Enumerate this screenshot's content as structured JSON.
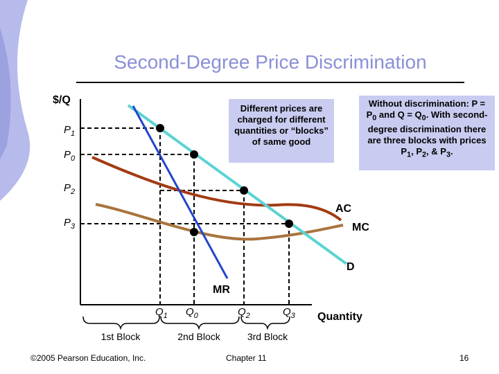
{
  "slide": {
    "title": "Second-Degree Price Discrimination",
    "footer_left": "©2005 Pearson Education, Inc.",
    "footer_center": "Chapter 11",
    "page_number": "16"
  },
  "callouts": {
    "left": "Different prices are charged for different quantities or “blocks” of same good",
    "right_html": "Without discrimination: P = P<sub>0</sub> and Q = Q<sub>0</sub>. With second-degree discrimination there are three blocks with prices P<sub>1</sub>, P<sub>2</sub>, & P<sub>3</sub>."
  },
  "chart_data": {
    "type": "diagram",
    "axes": {
      "y_label": "$/Q",
      "x_label": "Quantity"
    },
    "price_labels": [
      {
        "name": "P",
        "sub": "1"
      },
      {
        "name": "P",
        "sub": "0"
      },
      {
        "name": "P",
        "sub": "2"
      },
      {
        "name": "P",
        "sub": "3"
      }
    ],
    "quantity_labels": [
      {
        "name": "Q",
        "sub": "1"
      },
      {
        "name": "Q",
        "sub": "0"
      },
      {
        "name": "Q",
        "sub": "2"
      },
      {
        "name": "Q",
        "sub": "3"
      }
    ],
    "curves": [
      {
        "label": "D",
        "color": "#5bd3d3"
      },
      {
        "label": "MR",
        "color": "#2244cc"
      },
      {
        "label": "AC",
        "color": "#a33a12"
      },
      {
        "label": "MC",
        "color": "#a8743d"
      }
    ],
    "blocks": [
      "1st Block",
      "2nd Block",
      "3rd Block"
    ]
  }
}
